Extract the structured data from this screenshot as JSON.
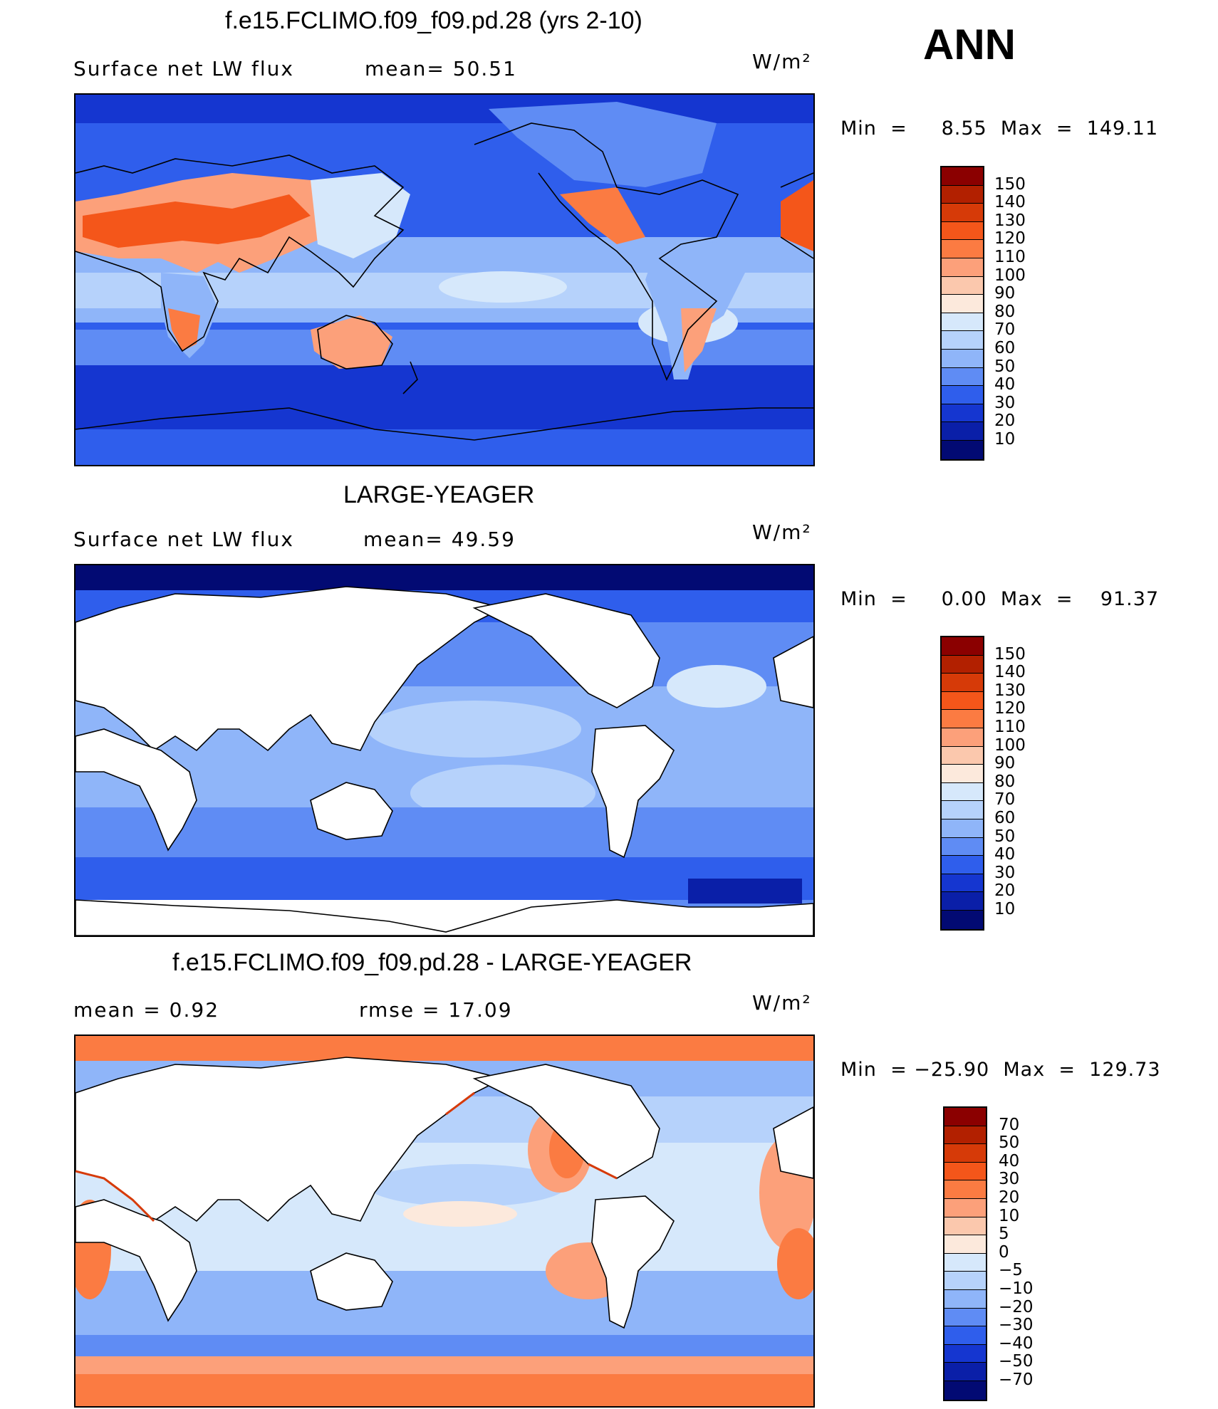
{
  "season": "ANN",
  "units": "W/m²",
  "panels": [
    {
      "title": "f.e15.FCLIMO.f09_f09.pd.28 (yrs 2-10)",
      "left_label": "Surface net LW flux",
      "mid_label": "mean=   50.51",
      "minmax": "Min  =     8.55  Max  =  149.11",
      "colorbar_levels": [
        "150",
        "140",
        "130",
        "120",
        "110",
        "100",
        "90",
        "80",
        "70",
        "60",
        "50",
        "40",
        "30",
        "20",
        "10"
      ],
      "colorbar_colors": [
        "#8b0000",
        "#b22000",
        "#d63a08",
        "#f4561a",
        "#fb7b42",
        "#fca07a",
        "#fbc8ad",
        "#fce9dc",
        "#d6e8fb",
        "#b6d2fb",
        "#8fb5f9",
        "#5f8cf4",
        "#2f5eec",
        "#1536d0",
        "#0a1fa8",
        "#020a73"
      ]
    },
    {
      "title": "LARGE-YEAGER",
      "left_label": "Surface net LW flux",
      "mid_label": "mean=   49.59",
      "minmax": "Min  =     0.00  Max  =    91.37",
      "colorbar_levels": [
        "150",
        "140",
        "130",
        "120",
        "110",
        "100",
        "90",
        "80",
        "70",
        "60",
        "50",
        "40",
        "30",
        "20",
        "10"
      ],
      "colorbar_colors": [
        "#8b0000",
        "#b22000",
        "#d63a08",
        "#f4561a",
        "#fb7b42",
        "#fca07a",
        "#fbc8ad",
        "#fce9dc",
        "#d6e8fb",
        "#b6d2fb",
        "#8fb5f9",
        "#5f8cf4",
        "#2f5eec",
        "#1536d0",
        "#0a1fa8",
        "#020a73"
      ]
    },
    {
      "title": "f.e15.FCLIMO.f09_f09.pd.28 - LARGE-YEAGER",
      "left_label": "mean =    0.92",
      "mid_label": "rmse  =    17.09",
      "minmax": "Min  = −25.90  Max  =  129.73",
      "colorbar_levels": [
        "70",
        "50",
        "40",
        "30",
        "20",
        "10",
        "5",
        "0",
        "−5",
        "−10",
        "−20",
        "−30",
        "−40",
        "−50",
        "−70"
      ],
      "colorbar_colors": [
        "#8b0000",
        "#b22000",
        "#d63a08",
        "#f4561a",
        "#fb7b42",
        "#fca07a",
        "#fbc8ad",
        "#fce9dc",
        "#d6e8fb",
        "#b6d2fb",
        "#8fb5f9",
        "#5f8cf4",
        "#2f5eec",
        "#1536d0",
        "#0a1fa8",
        "#020a73"
      ]
    }
  ]
}
